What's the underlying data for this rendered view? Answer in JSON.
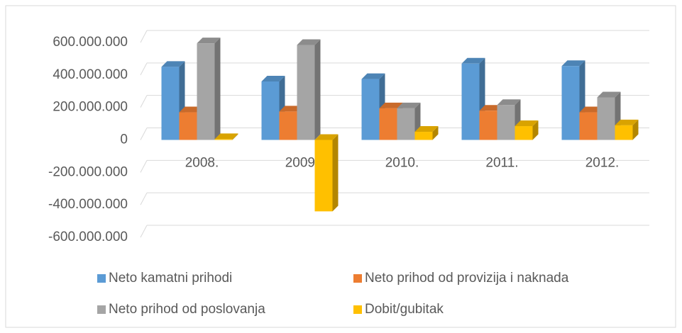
{
  "chart_data": {
    "type": "bar3d",
    "categories": [
      "2008.",
      "2009.",
      "2010.",
      "2011.",
      "2012."
    ],
    "series": [
      {
        "name": "Neto kamatni prihodi",
        "color": "#5b9bd5",
        "values": [
          450000000,
          360000000,
          375000000,
          470000000,
          455000000
        ]
      },
      {
        "name": "Neto prihod od provizija i naknada",
        "color": "#ed7d31",
        "values": [
          170000000,
          175000000,
          195000000,
          180000000,
          170000000
        ]
      },
      {
        "name": "Neto prihod od poslovanja",
        "color": "#a5a5a5",
        "values": [
          595000000,
          585000000,
          195000000,
          215000000,
          262000000
        ]
      },
      {
        "name": "Dobit/gubitak",
        "color": "#ffc000",
        "values": [
          5000000,
          -440000000,
          50000000,
          85000000,
          90000000
        ]
      }
    ],
    "ylim": [
      -600000000,
      600000000
    ],
    "yticks": [
      {
        "value": -600000000,
        "label": "-600.000.000"
      },
      {
        "value": -400000000,
        "label": "-400.000.000"
      },
      {
        "value": -200000000,
        "label": "-200.000.000"
      },
      0,
      {
        "value": 200000000,
        "label": "200.000.000"
      },
      {
        "value": 400000000,
        "label": "400.000.000"
      },
      {
        "value": 600000000,
        "label": "600.000.000"
      }
    ],
    "grid": true,
    "legend": "bottom"
  }
}
